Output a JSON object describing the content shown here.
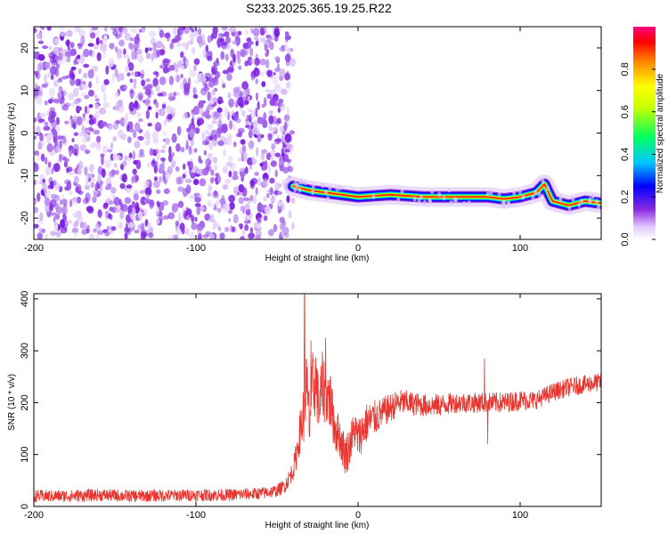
{
  "title": "S233.2025.365.19.25.R22",
  "colors": {
    "noise": "#8f40e6",
    "trace": "#e8352f",
    "background": "#ffffff"
  },
  "chart_data": [
    {
      "type": "heatmap",
      "xlabel": "Height of straight line (km)",
      "ylabel": "Frequency (Hz)",
      "xlim": [
        -200,
        150
      ],
      "ylim": [
        -25,
        25
      ],
      "xticks": [
        -200,
        -100,
        0,
        100
      ],
      "yticks": [
        -20,
        -10,
        0,
        10,
        20
      ],
      "noise_region": {
        "x": [
          -200,
          -40
        ],
        "y": [
          -25,
          25
        ]
      },
      "ridge": [
        {
          "x": -40,
          "y": -12.5
        },
        {
          "x": -30,
          "y": -13.5
        },
        {
          "x": -20,
          "y": -14.0
        },
        {
          "x": -10,
          "y": -14.5
        },
        {
          "x": 0,
          "y": -15.0
        },
        {
          "x": 20,
          "y": -14.5
        },
        {
          "x": 40,
          "y": -15.0
        },
        {
          "x": 60,
          "y": -15.0
        },
        {
          "x": 80,
          "y": -15.0
        },
        {
          "x": 90,
          "y": -15.5
        },
        {
          "x": 100,
          "y": -15.0
        },
        {
          "x": 110,
          "y": -14.0
        },
        {
          "x": 115,
          "y": -12.0
        },
        {
          "x": 120,
          "y": -16.0
        },
        {
          "x": 130,
          "y": -17.0
        },
        {
          "x": 140,
          "y": -16.0
        },
        {
          "x": 150,
          "y": -16.5
        }
      ],
      "colorbar": {
        "label": "Normalized spectral amplitude",
        "range": [
          0,
          1
        ],
        "ticks": [
          "0.0",
          "0.2",
          "0.4",
          "0.6",
          "0.8"
        ]
      }
    },
    {
      "type": "line",
      "xlabel": "Height of straight line (km)",
      "ylabel": "SNR (10 * v/v)",
      "xlim": [
        -200,
        150
      ],
      "ylim": [
        0,
        410
      ],
      "xticks": [
        -200,
        -100,
        0,
        100
      ],
      "yticks": [
        0,
        100,
        200,
        300,
        400
      ],
      "series": [
        {
          "x": [
            -200,
            -180,
            -160,
            -140,
            -120,
            -100,
            -80,
            -60,
            -50,
            -45,
            -40,
            -38,
            -36,
            -34,
            -33,
            -32,
            -30,
            -28,
            -26,
            -25,
            -24,
            -22,
            -20,
            -18,
            -16,
            -14,
            -12,
            -10,
            -8,
            -6,
            -4,
            -2,
            0,
            5,
            10,
            15,
            20,
            25,
            30,
            40,
            50,
            60,
            70,
            80,
            90,
            100,
            110,
            120,
            130,
            140,
            150
          ],
          "y": [
            20,
            20,
            22,
            20,
            21,
            22,
            22,
            25,
            30,
            40,
            70,
            100,
            140,
            170,
            200,
            240,
            160,
            220,
            250,
            210,
            190,
            230,
            220,
            210,
            180,
            150,
            140,
            120,
            100,
            110,
            130,
            150,
            130,
            160,
            170,
            180,
            190,
            200,
            200,
            195,
            195,
            200,
            200,
            200,
            200,
            205,
            205,
            220,
            230,
            235,
            240
          ],
          "noise_amplitude": [
            12,
            12,
            12,
            12,
            12,
            12,
            12,
            12,
            12,
            14,
            20,
            30,
            40,
            60,
            70,
            70,
            60,
            80,
            70,
            60,
            60,
            70,
            60,
            60,
            50,
            50,
            40,
            40,
            40,
            40,
            40,
            40,
            40,
            40,
            35,
            30,
            28,
            26,
            24,
            22,
            22,
            20,
            20,
            20,
            20,
            20,
            18,
            18,
            18,
            18,
            18
          ],
          "spikes": [
            {
              "x": -33,
              "y": 410
            },
            {
              "x": -29,
              "y": 320
            },
            {
              "x": -20,
              "y": 325
            },
            {
              "x": -17,
              "y": 250
            },
            {
              "x": 78,
              "y": 285
            },
            {
              "x": 80,
              "y": 120
            }
          ]
        }
      ]
    }
  ]
}
